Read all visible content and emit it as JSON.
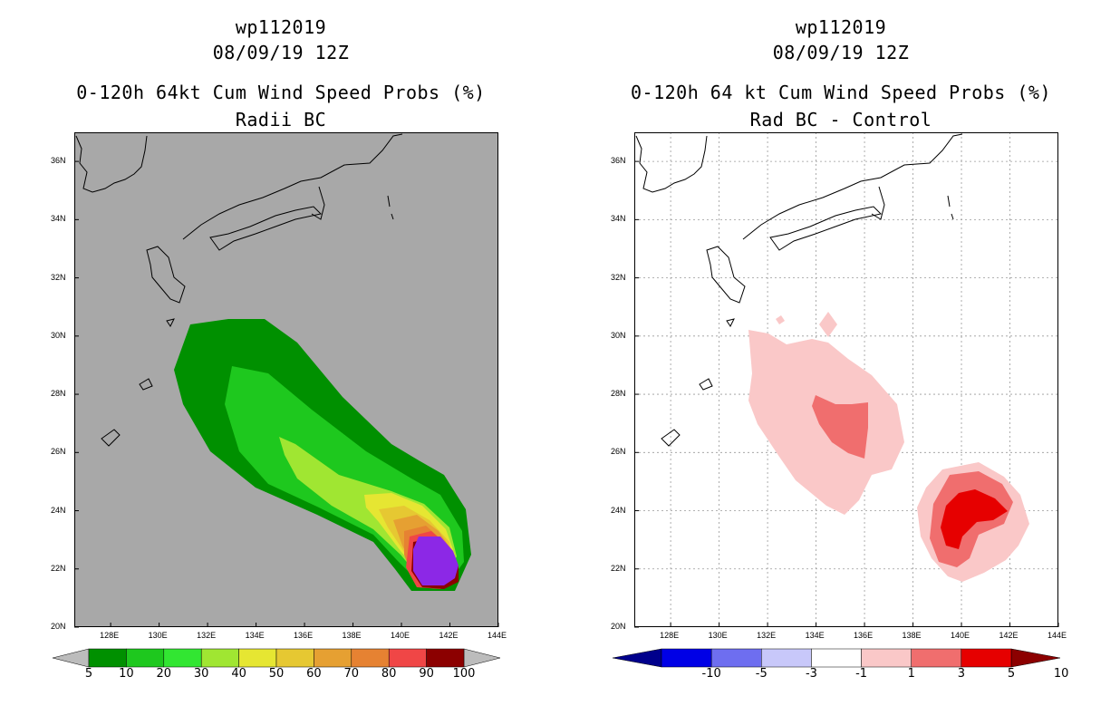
{
  "left_panel": {
    "title_storm": "wp112019",
    "title_date": "08/09/19 12Z",
    "title_main": "0-120h 64kt Cum Wind Speed Probs (%)",
    "title_sub": "Radii BC",
    "background_color": "#a8a8a8",
    "colorbar": {
      "labels": [
        "5",
        "10",
        "20",
        "30",
        "40",
        "50",
        "60",
        "70",
        "80",
        "90",
        "100"
      ],
      "colors": [
        "#009000",
        "#1ec81e",
        "#32e632",
        "#a0e632",
        "#e6e632",
        "#e6c832",
        "#e6a032",
        "#e68232",
        "#f04646",
        "#8c0000",
        "#8c28e6"
      ]
    }
  },
  "right_panel": {
    "title_storm": "wp112019",
    "title_date": "08/09/19 12Z",
    "title_main": "0-120h 64 kt Cum Wind Speed Probs (%)",
    "title_sub": "Rad BC - Control",
    "background_color": "#ffffff",
    "colorbar": {
      "labels": [
        "-10",
        "-5",
        "-3",
        "-1",
        "1",
        "3",
        "5",
        "10"
      ],
      "colors": [
        "#00008c",
        "#0000e6",
        "#6e6ef0",
        "#c8c8fa",
        "#ffffff",
        "#fac8c8",
        "#f06e6e",
        "#e60000",
        "#8c0000"
      ]
    }
  },
  "axes": {
    "lon_labels": [
      "128E",
      "130E",
      "132E",
      "134E",
      "136E",
      "138E",
      "140E",
      "142E",
      "144E"
    ],
    "lat_labels": [
      "20N",
      "22N",
      "24N",
      "26N",
      "28N",
      "30N",
      "32N",
      "34N",
      "36N"
    ]
  },
  "chart_data": [
    {
      "type": "heatmap",
      "title": "0-120h 64kt Cum Wind Speed Probs (%) - Radii BC",
      "units": "%",
      "contour_levels": [
        5,
        10,
        20,
        30,
        40,
        50,
        60,
        70,
        80,
        90,
        100
      ],
      "lon_range": [
        126.5,
        144
      ],
      "lat_range": [
        20,
        37
      ],
      "max_region": {
        "lon": [
          140.5,
          142.5
        ],
        "lat": [
          21.5,
          23.2
        ],
        "value": "90-100"
      }
    },
    {
      "type": "heatmap",
      "title": "0-120h 64 kt Cum Wind Speed Probs (%) - Rad BC - Control",
      "units": "%",
      "contour_levels": [
        -10,
        -5,
        -3,
        -1,
        1,
        3,
        5,
        10
      ],
      "lon_range": [
        126.5,
        144
      ],
      "lat_range": [
        20,
        37
      ],
      "max_region": {
        "lon": [
          139.5,
          141.8
        ],
        "lat": [
          22.8,
          24.6
        ],
        "value": "5-10"
      }
    }
  ]
}
